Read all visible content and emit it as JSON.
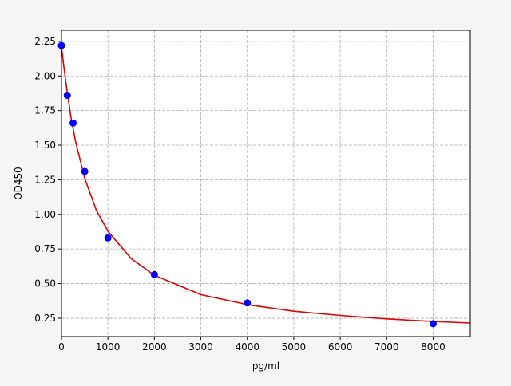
{
  "chart_data": {
    "type": "scatter",
    "title": "",
    "xlabel": "pg/ml",
    "ylabel": "OD450",
    "xlim": [
      0,
      8800
    ],
    "ylim": [
      0.117,
      2.33
    ],
    "grid": true,
    "xticks": [
      0,
      1000,
      2000,
      3000,
      4000,
      5000,
      6000,
      7000,
      8000
    ],
    "yticks": [
      0.25,
      0.5,
      0.75,
      1.0,
      1.25,
      1.5,
      1.75,
      2.0,
      2.25
    ],
    "colors": {
      "points": "#0000ff",
      "curve": "#e00000",
      "grid": "#b0b0b0"
    },
    "points": {
      "x": [
        0,
        125,
        250,
        500,
        1000,
        2000,
        4000,
        8000
      ],
      "y": [
        2.22,
        1.86,
        1.66,
        1.31,
        0.83,
        0.565,
        0.36,
        0.21
      ]
    },
    "fit_curve": {
      "x": [
        0,
        50,
        100,
        200,
        300,
        500,
        750,
        1000,
        1500,
        2000,
        3000,
        4000,
        5000,
        6000,
        7000,
        8000,
        8800
      ],
      "y": [
        2.21,
        2.07,
        1.94,
        1.71,
        1.53,
        1.26,
        1.03,
        0.878,
        0.68,
        0.56,
        0.42,
        0.348,
        0.3,
        0.27,
        0.245,
        0.226,
        0.215
      ]
    }
  }
}
